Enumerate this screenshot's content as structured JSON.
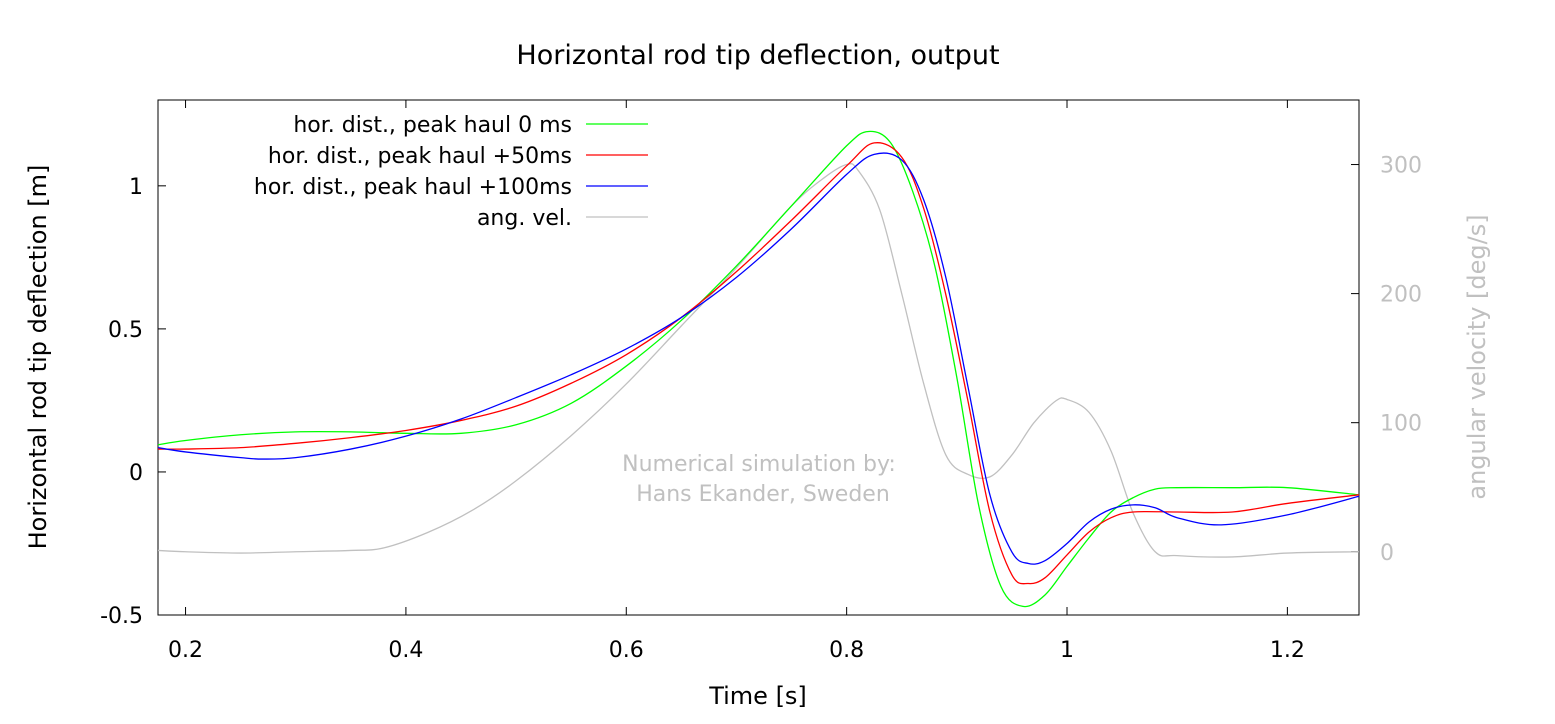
{
  "chart_data": {
    "type": "line",
    "title": "Horizontal rod tip deflection, output",
    "xlabel": "Time [s]",
    "ylabel": "Horizontal rod tip deflection [m]",
    "y2label": "angular velocity [deg/s]",
    "xlim": [
      0.175,
      1.265
    ],
    "ylim": [
      -0.5,
      1.3
    ],
    "y2lim": [
      -49,
      350
    ],
    "xticks": [
      {
        "value": 0.2,
        "label": "0.2"
      },
      {
        "value": 0.4,
        "label": "0.4"
      },
      {
        "value": 0.6,
        "label": "0.6"
      },
      {
        "value": 0.8,
        "label": "0.8"
      },
      {
        "value": 1.0,
        "label": "1"
      },
      {
        "value": 1.2,
        "label": "1.2"
      }
    ],
    "yticks": [
      {
        "value": -0.5,
        "label": "-0.5"
      },
      {
        "value": 0,
        "label": "0"
      },
      {
        "value": 0.5,
        "label": "0.5"
      },
      {
        "value": 1,
        "label": "1"
      }
    ],
    "y2ticks": [
      {
        "value": 0,
        "label": "0"
      },
      {
        "value": 100,
        "label": "100"
      },
      {
        "value": 200,
        "label": "200"
      },
      {
        "value": 300,
        "label": "300"
      }
    ],
    "grid": false,
    "legend_position": "top-left",
    "annotation": [
      "Numerical simulation by:",
      "Hans Ekander, Sweden"
    ],
    "colors": {
      "green": "#00ff00",
      "red": "#ff0000",
      "blue": "#0000ff",
      "gray": "#c0c0c0",
      "axis": "#000000"
    },
    "series": [
      {
        "name": "hor. dist., peak haul 0 ms",
        "color": "#00ff00",
        "axis": "y1",
        "x": [
          0.175,
          0.2,
          0.25,
          0.3,
          0.35,
          0.4,
          0.45,
          0.5,
          0.55,
          0.6,
          0.65,
          0.7,
          0.75,
          0.8,
          0.82,
          0.84,
          0.86,
          0.88,
          0.9,
          0.92,
          0.94,
          0.96,
          0.98,
          1.0,
          1.02,
          1.04,
          1.06,
          1.08,
          1.1,
          1.15,
          1.2,
          1.265
        ],
        "values": [
          0.095,
          0.11,
          0.13,
          0.14,
          0.14,
          0.135,
          0.135,
          0.165,
          0.24,
          0.37,
          0.53,
          0.72,
          0.93,
          1.14,
          1.19,
          1.15,
          0.98,
          0.72,
          0.33,
          -0.12,
          -0.4,
          -0.47,
          -0.43,
          -0.33,
          -0.23,
          -0.14,
          -0.09,
          -0.06,
          -0.055,
          -0.055,
          -0.055,
          -0.08
        ]
      },
      {
        "name": "hor. dist., peak haul +50ms",
        "color": "#ff0000",
        "axis": "y1",
        "x": [
          0.175,
          0.2,
          0.25,
          0.3,
          0.35,
          0.4,
          0.45,
          0.5,
          0.55,
          0.6,
          0.65,
          0.7,
          0.75,
          0.8,
          0.825,
          0.85,
          0.87,
          0.89,
          0.91,
          0.93,
          0.95,
          0.965,
          0.98,
          1.0,
          1.02,
          1.04,
          1.06,
          1.1,
          1.15,
          1.2,
          1.265
        ],
        "values": [
          0.08,
          0.08,
          0.085,
          0.1,
          0.12,
          0.145,
          0.18,
          0.23,
          0.31,
          0.41,
          0.54,
          0.7,
          0.88,
          1.07,
          1.15,
          1.1,
          0.92,
          0.62,
          0.25,
          -0.14,
          -0.36,
          -0.39,
          -0.37,
          -0.29,
          -0.21,
          -0.16,
          -0.14,
          -0.14,
          -0.14,
          -0.11,
          -0.08
        ]
      },
      {
        "name": "hor. dist., peak haul +100ms",
        "color": "#0000ff",
        "axis": "y1",
        "x": [
          0.175,
          0.2,
          0.25,
          0.27,
          0.3,
          0.35,
          0.4,
          0.45,
          0.5,
          0.55,
          0.6,
          0.65,
          0.7,
          0.75,
          0.8,
          0.825,
          0.85,
          0.87,
          0.89,
          0.91,
          0.93,
          0.95,
          0.965,
          0.98,
          1.0,
          1.02,
          1.04,
          1.06,
          1.08,
          1.1,
          1.14,
          1.2,
          1.265
        ],
        "values": [
          0.085,
          0.07,
          0.05,
          0.045,
          0.05,
          0.08,
          0.125,
          0.185,
          0.26,
          0.34,
          0.43,
          0.54,
          0.68,
          0.85,
          1.04,
          1.11,
          1.09,
          0.95,
          0.68,
          0.3,
          -0.08,
          -0.28,
          -0.32,
          -0.31,
          -0.25,
          -0.175,
          -0.13,
          -0.115,
          -0.125,
          -0.16,
          -0.185,
          -0.15,
          -0.085
        ]
      },
      {
        "name": "ang. vel.",
        "color": "#c0c0c0",
        "axis": "y2",
        "x": [
          0.175,
          0.2,
          0.25,
          0.3,
          0.35,
          0.38,
          0.42,
          0.46,
          0.5,
          0.55,
          0.6,
          0.65,
          0.7,
          0.75,
          0.78,
          0.8,
          0.81,
          0.83,
          0.85,
          0.87,
          0.89,
          0.91,
          0.93,
          0.95,
          0.97,
          0.99,
          1.0,
          1.02,
          1.04,
          1.06,
          1.08,
          1.1,
          1.15,
          1.2,
          1.265
        ],
        "values": [
          1,
          0,
          -1,
          0,
          1,
          3,
          15,
          32,
          55,
          90,
          130,
          175,
          220,
          268,
          290,
          300,
          296,
          265,
          200,
          130,
          75,
          60,
          58,
          75,
          100,
          117,
          118,
          108,
          78,
          30,
          0,
          -3,
          -4,
          -1,
          0
        ]
      }
    ]
  }
}
